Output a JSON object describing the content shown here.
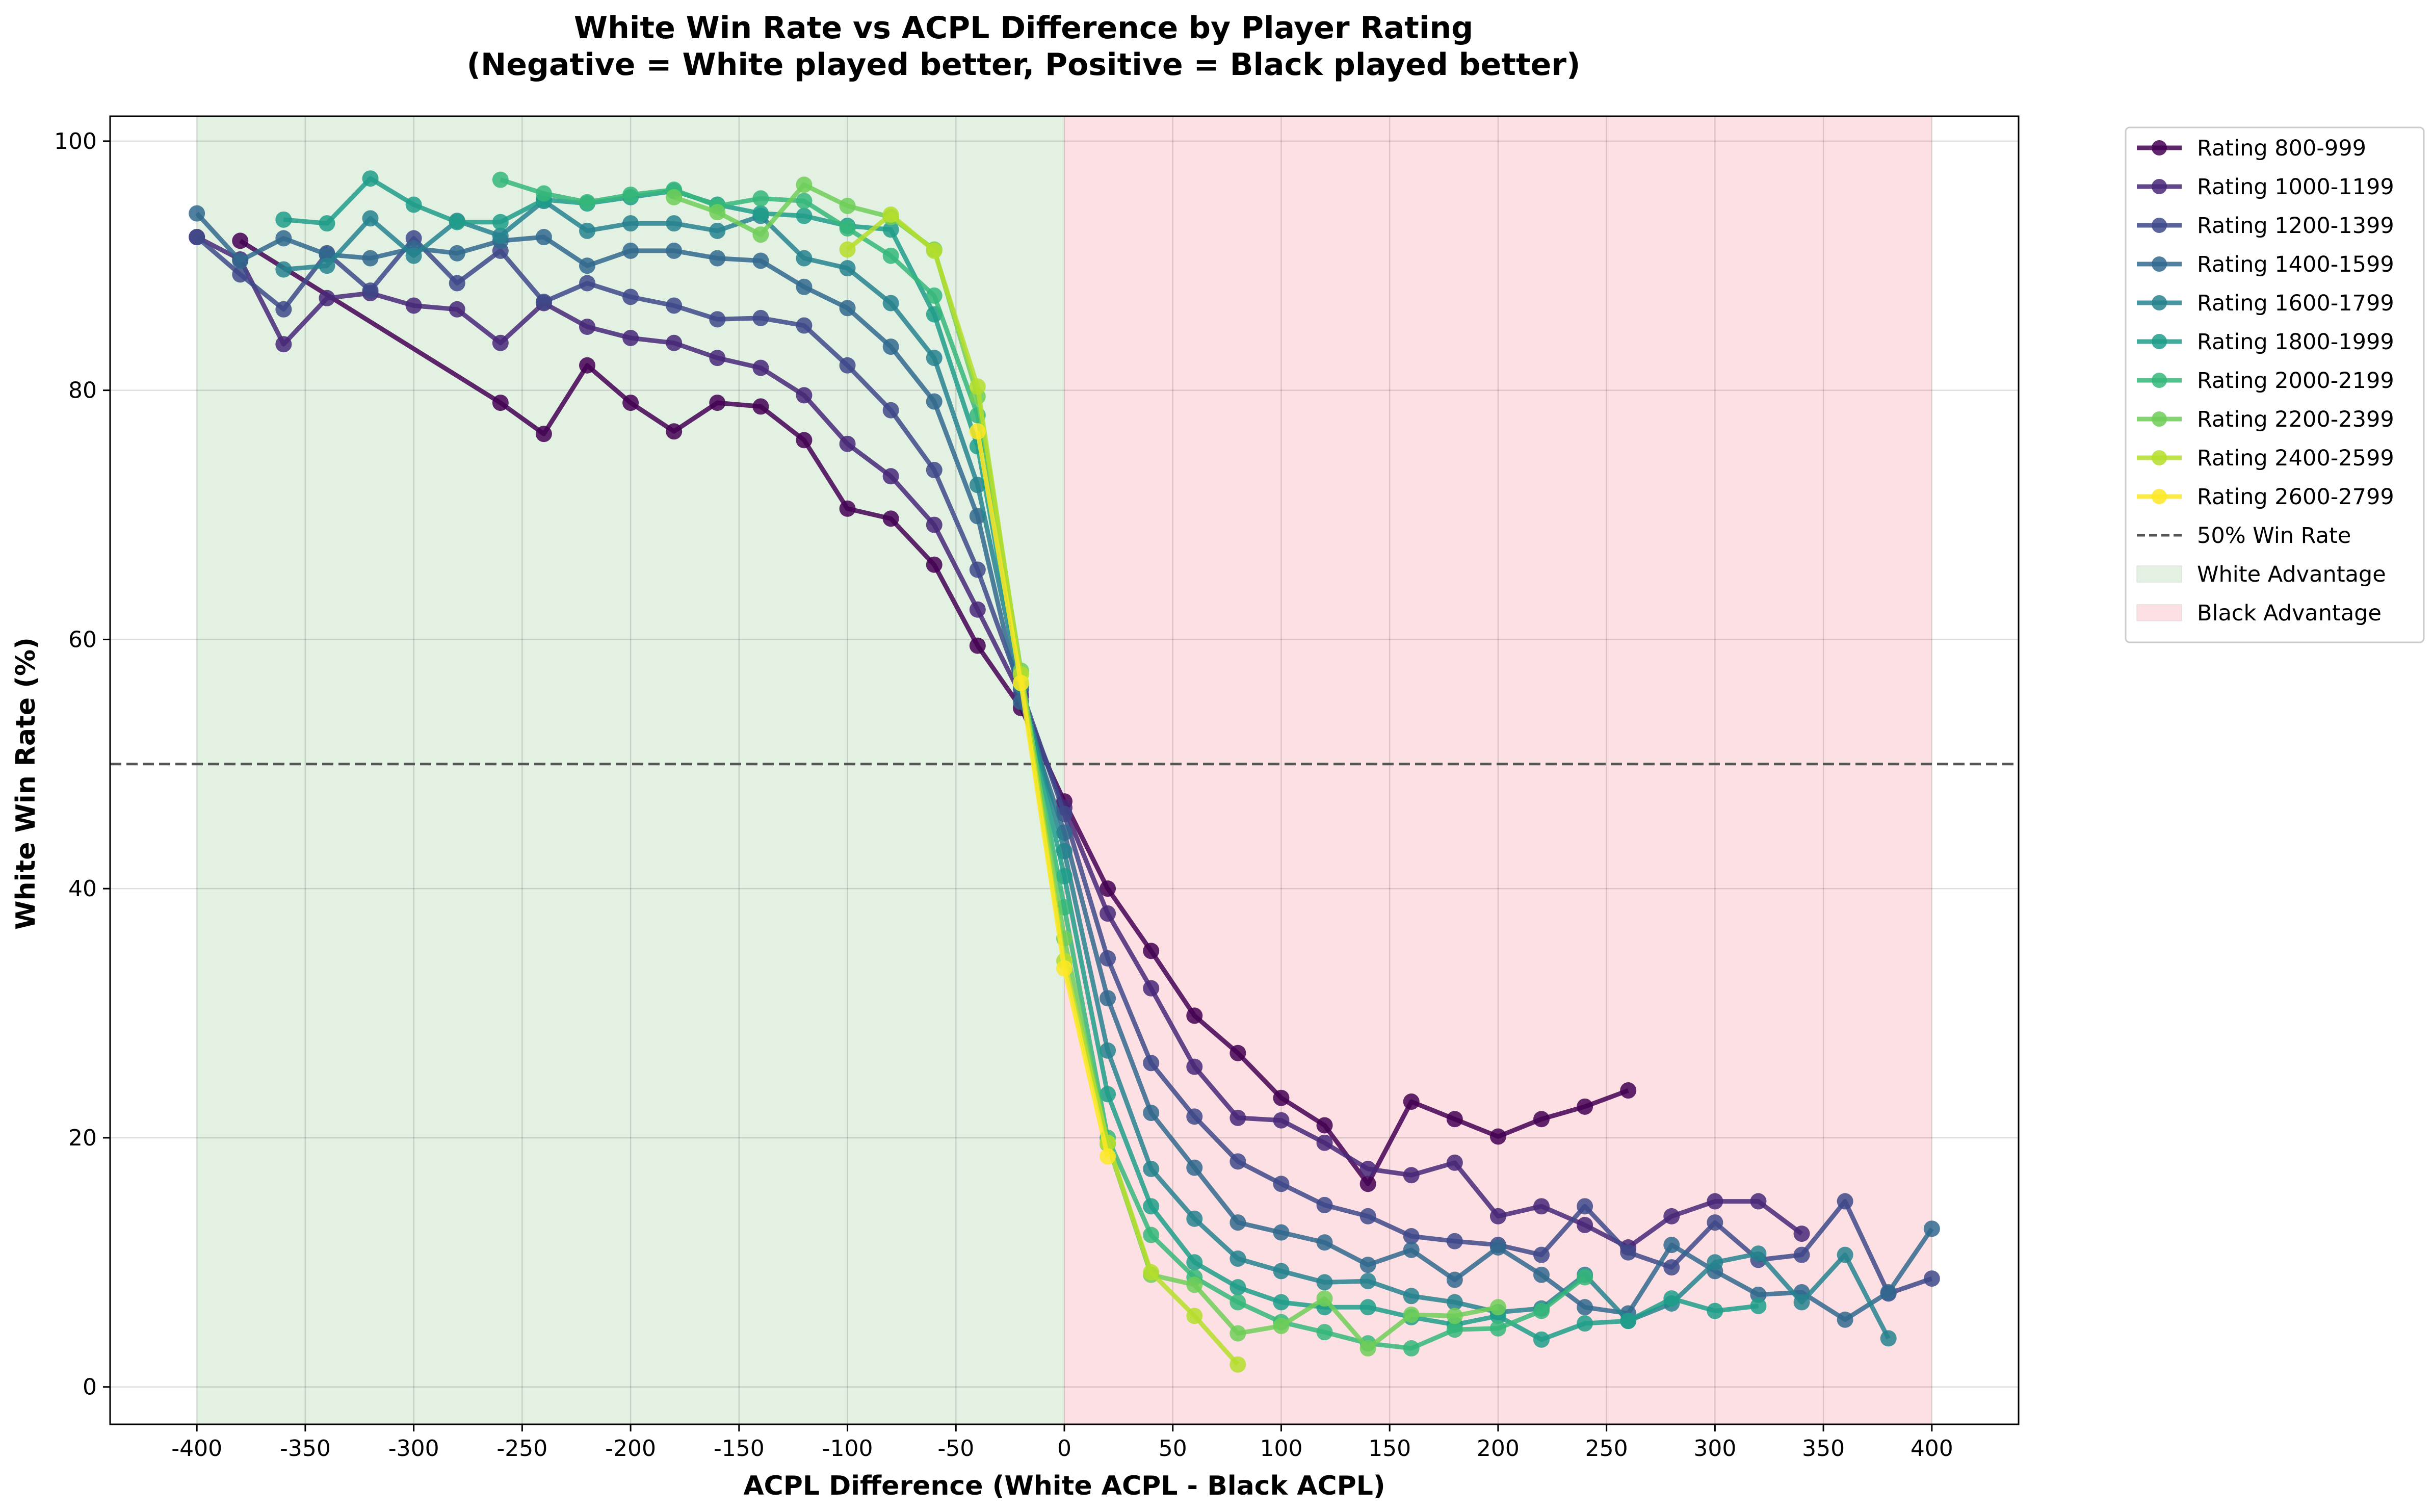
{
  "chart_data": {
    "type": "line",
    "title": "White Win Rate vs ACPL Difference by Player Rating",
    "subtitle": "(Negative = White played better, Positive = Black played better)",
    "xlabel": "ACPL Difference (White ACPL - Black ACPL)",
    "ylabel": "White Win Rate (%)",
    "xlim": [
      -440,
      440
    ],
    "ylim": [
      -3,
      102
    ],
    "xticks": [
      -400,
      -350,
      -300,
      -250,
      -200,
      -150,
      -100,
      -50,
      0,
      50,
      100,
      150,
      200,
      250,
      300,
      350,
      400
    ],
    "yticks": [
      0,
      20,
      40,
      60,
      80,
      100
    ],
    "grid": true,
    "legend_position": "outside-top-right",
    "reference_line": {
      "label": "50% Win Rate",
      "y": 50,
      "color": "#555555"
    },
    "regions": [
      {
        "label": "White Advantage",
        "x_from": -400,
        "x_to": 0,
        "color": "#e3f1e3"
      },
      {
        "label": "Black Advantage",
        "x_from": 0,
        "x_to": 400,
        "color": "#fde0e3"
      }
    ],
    "series": [
      {
        "name": "Rating 800-999",
        "color": "#440154",
        "x": [
          -380,
          -260,
          -240,
          -220,
          -200,
          -180,
          -160,
          -140,
          -120,
          -100,
          -80,
          -60,
          -40,
          -20,
          0,
          20,
          40,
          60,
          80,
          100,
          120,
          140,
          160,
          180,
          200,
          220,
          240,
          260
        ],
        "y": [
          92,
          79,
          76.5,
          82,
          79,
          76.7,
          79,
          78.7,
          76,
          70.5,
          69.7,
          66,
          59.5,
          54.5,
          47,
          40,
          35,
          29.8,
          26.8,
          23.2,
          21,
          16.3,
          22.9,
          21.5,
          20.1,
          21.5,
          22.5,
          23.8
        ]
      },
      {
        "name": "Rating 1000-1199",
        "color": "#482878",
        "x": [
          -400,
          -380,
          -360,
          -340,
          -320,
          -300,
          -280,
          -260,
          -240,
          -220,
          -200,
          -180,
          -160,
          -140,
          -120,
          -100,
          -80,
          -60,
          -40,
          -20,
          0,
          20,
          40,
          60,
          80,
          100,
          120,
          140,
          160,
          180,
          200,
          220,
          240,
          260,
          280,
          300,
          320,
          340
        ],
        "y": [
          92.3,
          90.5,
          83.7,
          87.4,
          87.8,
          86.8,
          86.5,
          83.8,
          87,
          85.1,
          84.2,
          83.8,
          82.6,
          81.8,
          79.6,
          75.7,
          73.1,
          69.2,
          62.4,
          55.5,
          46.5,
          38,
          32,
          25.7,
          21.6,
          21.4,
          19.6,
          17.5,
          17,
          18,
          13.7,
          14.5,
          13,
          11.2,
          13.7,
          14.9,
          14.9,
          12.3
        ]
      },
      {
        "name": "Rating 1200-1399",
        "color": "#3e4989",
        "x": [
          -400,
          -380,
          -360,
          -340,
          -320,
          -300,
          -280,
          -260,
          -240,
          -220,
          -200,
          -180,
          -160,
          -140,
          -120,
          -100,
          -80,
          -60,
          -40,
          -20,
          0,
          20,
          40,
          60,
          80,
          100,
          120,
          140,
          160,
          180,
          200,
          220,
          240,
          260,
          280,
          300,
          320,
          340,
          360,
          380,
          400
        ],
        "y": [
          92.3,
          89.3,
          86.5,
          91,
          88,
          92.2,
          88.6,
          91.2,
          87.1,
          88.6,
          87.5,
          86.8,
          85.7,
          85.8,
          85.2,
          82,
          78.4,
          73.6,
          65.6,
          56,
          46,
          34.4,
          26,
          21.7,
          18.1,
          16.3,
          14.6,
          13.7,
          12.1,
          11.7,
          11.4,
          10.6,
          14.5,
          10.8,
          9.6,
          13.2,
          10.2,
          10.6,
          14.9,
          7.5,
          8.7
        ]
      },
      {
        "name": "Rating 1400-1599",
        "color": "#31688e",
        "x": [
          -400,
          -380,
          -360,
          -340,
          -320,
          -300,
          -280,
          -260,
          -240,
          -220,
          -200,
          -180,
          -160,
          -140,
          -120,
          -100,
          -80,
          -60,
          -40,
          -20,
          0,
          20,
          40,
          60,
          80,
          100,
          120,
          140,
          160,
          180,
          200,
          220,
          240,
          260,
          280,
          300,
          320,
          340,
          360,
          380,
          400
        ],
        "y": [
          94.2,
          90.4,
          92.2,
          90.9,
          90.6,
          91.4,
          91,
          92,
          92.3,
          90,
          91.2,
          91.2,
          90.6,
          90.4,
          88.3,
          86.6,
          83.5,
          79.1,
          69.9,
          55,
          44.5,
          31.2,
          22,
          17.6,
          13.2,
          12.4,
          11.6,
          9.8,
          11,
          8.6,
          11.2,
          9,
          6.4,
          5.9,
          11.4,
          9.3,
          7.4,
          7.6,
          5.4,
          7.6,
          12.7
        ]
      },
      {
        "name": "Rating 1600-1799",
        "color": "#26828e",
        "x": [
          -360,
          -340,
          -320,
          -300,
          -280,
          -260,
          -240,
          -220,
          -200,
          -180,
          -160,
          -140,
          -120,
          -100,
          -80,
          -60,
          -40,
          -20,
          0,
          20,
          40,
          60,
          80,
          100,
          120,
          140,
          160,
          180,
          200,
          220,
          240,
          260,
          280,
          300,
          320,
          340,
          360,
          380
        ],
        "y": [
          89.7,
          90,
          93.8,
          90.8,
          93.6,
          92.4,
          95.2,
          92.8,
          93.4,
          93.4,
          92.8,
          94,
          90.6,
          89.8,
          87,
          82.6,
          72.4,
          56.3,
          43,
          27,
          17.5,
          13.5,
          10.3,
          9.3,
          8.4,
          8.5,
          7.3,
          6.8,
          6,
          6.3,
          9,
          5.3,
          6.7,
          10,
          10.7,
          6.8,
          10.6,
          3.9
        ]
      },
      {
        "name": "Rating 1800-1999",
        "color": "#1f9e89",
        "x": [
          -360,
          -340,
          -320,
          -300,
          -280,
          -260,
          -240,
          -220,
          -200,
          -180,
          -160,
          -140,
          -120,
          -100,
          -80,
          -60,
          -40,
          -20,
          0,
          20,
          40,
          60,
          80,
          100,
          120,
          140,
          160,
          180,
          200,
          220,
          240,
          260,
          280,
          300,
          320
        ],
        "y": [
          93.7,
          93.4,
          97,
          94.9,
          93.5,
          93.5,
          95.3,
          95,
          95.5,
          96,
          94.9,
          94.2,
          94,
          93.2,
          92.9,
          86.1,
          75.5,
          56.5,
          41,
          23.5,
          14.5,
          10,
          8,
          6.8,
          6.4,
          6.4,
          5.6,
          5,
          5.7,
          3.8,
          5.1,
          5.3,
          7.1,
          6.1,
          6.5
        ]
      },
      {
        "name": "Rating 2000-2199",
        "color": "#35b779",
        "x": [
          -260,
          -240,
          -220,
          -200,
          -180,
          -160,
          -140,
          -120,
          -100,
          -80,
          -60,
          -40,
          -20,
          0,
          20,
          40,
          60,
          80,
          100,
          120,
          140,
          160,
          180,
          200,
          220,
          240
        ],
        "y": [
          96.9,
          95.8,
          95.1,
          95.7,
          96.1,
          94.8,
          95.4,
          95.2,
          93,
          90.8,
          87.6,
          78,
          56.5,
          38.5,
          20,
          12.2,
          8.8,
          6.8,
          5.2,
          4.4,
          3.5,
          3.1,
          4.6,
          4.7,
          6.1,
          8.8
        ]
      },
      {
        "name": "Rating 2200-2399",
        "color": "#6ece58",
        "x": [
          -180,
          -160,
          -140,
          -120,
          -100,
          -80,
          -60,
          -40,
          -20,
          0,
          20,
          40,
          60,
          80,
          100,
          120,
          140,
          160,
          180,
          200
        ],
        "y": [
          95.5,
          94.3,
          92.5,
          96.5,
          94.8,
          93.9,
          91.3,
          79.5,
          57.5,
          36,
          19.5,
          9,
          8.2,
          4.3,
          4.9,
          7.1,
          3.1,
          5.8,
          5.7,
          6.4
        ]
      },
      {
        "name": "Rating 2400-2599",
        "color": "#b5de2b",
        "x": [
          -100,
          -80,
          -60,
          -40,
          -20,
          0,
          20,
          40,
          60,
          80
        ],
        "y": [
          91.3,
          94.1,
          91.2,
          80.3,
          57.2,
          34.2,
          19.6,
          9.2,
          5.7,
          1.8
        ]
      },
      {
        "name": "Rating 2600-2799",
        "color": "#fde725",
        "x": [
          -40,
          -20,
          0,
          20
        ],
        "y": [
          76.7,
          56.5,
          33.6,
          18.5
        ]
      }
    ],
    "legend": [
      "Rating 800-999",
      "Rating 1000-1199",
      "Rating 1200-1399",
      "Rating 1400-1599",
      "Rating 1600-1799",
      "Rating 1800-1999",
      "Rating 2000-2199",
      "Rating 2200-2399",
      "Rating 2400-2599",
      "Rating 2600-2799",
      "50% Win Rate",
      "White Advantage",
      "Black Advantage"
    ]
  }
}
